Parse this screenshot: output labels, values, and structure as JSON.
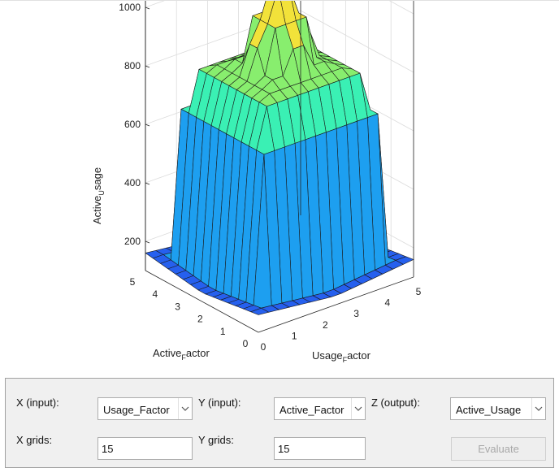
{
  "colors": {
    "surface_palette": [
      "#2660ee",
      "#1d9ff0",
      "#2ee8e8",
      "#3af0b4",
      "#88ee6e",
      "#f2e23a"
    ],
    "panel_background": "#f0f0f0",
    "edge": "#1a1a1a"
  },
  "chart_data": {
    "type": "surface",
    "xlabel": "Usage_Factor",
    "ylabel": "Active_Factor",
    "zlabel": "Active_Usage",
    "xlim": [
      0,
      5
    ],
    "ylim": [
      0,
      5
    ],
    "zlim": [
      100,
      1100
    ],
    "x_ticks": [
      "0",
      "1",
      "2",
      "3",
      "4",
      "5"
    ],
    "y_ticks": [
      "0",
      "1",
      "2",
      "3",
      "4",
      "5"
    ],
    "z_ticks": [
      "200",
      "400",
      "600",
      "800",
      "1000"
    ],
    "grid": true,
    "surface_description": "fuzzy output surface: low at edges, stepped plateau around 800 in the middle, peak near 1100 at center top"
  },
  "plot": {
    "xlabel_main": "Usage",
    "xlabel_sub": "F",
    "xlabel_rest": "actor",
    "ylabel_main": "Active",
    "ylabel_sub": "F",
    "ylabel_rest": "actor",
    "zlabel_main": "Active",
    "zlabel_sub": "U",
    "zlabel_rest": "sage"
  },
  "controls": {
    "x_input_label": "X (input):",
    "x_input_value": "Usage_Factor",
    "y_input_label": "Y (input):",
    "y_input_value": "Active_Factor",
    "z_output_label": "Z (output):",
    "z_output_value": "Active_Usage",
    "x_grids_label": "X grids:",
    "x_grids_value": "15",
    "y_grids_label": "Y grids:",
    "y_grids_value": "15",
    "evaluate_label": "Evaluate",
    "dropdown_icon": "chevron-down-icon"
  }
}
